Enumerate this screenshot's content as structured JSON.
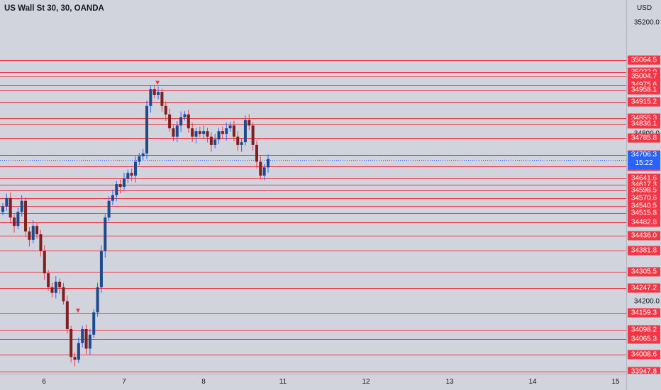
{
  "header": {
    "symbol_title": "US Wall St 30, 30, OANDA"
  },
  "price_axis": {
    "currency": "USD",
    "top_tick": "35200.0",
    "ticks": [
      {
        "value": 34800,
        "label": "34800.0"
      },
      {
        "value": 34200,
        "label": "34200.0"
      }
    ],
    "current_price": "34706.3",
    "countdown": "15:22"
  },
  "time_axis": {
    "labels": [
      "6",
      "7",
      "8",
      "11",
      "12",
      "13",
      "14",
      "15"
    ]
  },
  "colors": {
    "background": "#d1d4dc",
    "level_line": "#f23645",
    "level_label_bg": "#f23645",
    "current_label_bg": "#2962ff",
    "candle_up": "#1e4a8c",
    "candle_down": "#7f1f1f",
    "wick_up": "#2962ff",
    "wick_down": "#f23645"
  },
  "chart_data": {
    "type": "candlestick",
    "title": "US Wall St 30, 30, OANDA",
    "xlabel": "",
    "ylabel": "USD",
    "ylim": [
      33940,
      35280
    ],
    "horizontal_levels": [
      35064.5,
      35022.0,
      35004.7,
      34975.6,
      34958.1,
      34915.2,
      34855.3,
      34836.1,
      34785.8,
      34723.5,
      34684.6,
      34641.6,
      34617.3,
      34598.5,
      34570.6,
      34540.5,
      34515.8,
      34482.8,
      34436.0,
      34381.8,
      34305.5,
      34247.2,
      34159.3,
      34098.2,
      34065.3,
      34008.6,
      33947.8
    ],
    "level_labels": [
      "35064.5",
      "35022.0",
      "35004.7",
      "34975.6",
      "34958.1",
      "34915.2",
      "34855.3",
      "34836.1",
      "34785.8",
      "34723.5",
      "34684.6",
      "34641.6",
      "34617.3",
      "34598.5",
      "34570.6",
      "34540.5",
      "34515.8",
      "34482.8",
      "34436.0",
      "34381.8",
      "34305.5",
      "34247.2",
      "34159.3",
      "34098.2",
      "34065.3",
      "34008.6",
      "33947.8"
    ],
    "last_price": 34706.3,
    "close_path": [
      34540,
      34570,
      34500,
      34470,
      34520,
      34560,
      34450,
      34420,
      34470,
      34440,
      34380,
      34300,
      34250,
      34230,
      34270,
      34250,
      34200,
      34100,
      34000,
      33990,
      34050,
      34100,
      34030,
      34080,
      34160,
      34250,
      34380,
      34500,
      34560,
      34580,
      34620,
      34610,
      34640,
      34660,
      34650,
      34700,
      34720,
      34730,
      34900,
      34960,
      34940,
      34950,
      34900,
      34870,
      34820,
      34790,
      34830,
      34860,
      34870,
      34820,
      34790,
      34810,
      34800,
      34810,
      34790,
      34760,
      34780,
      34810,
      34800,
      34820,
      34830,
      34790,
      34760,
      34770,
      34850,
      34830,
      34760,
      34700,
      34650,
      34680,
      34710
    ]
  }
}
